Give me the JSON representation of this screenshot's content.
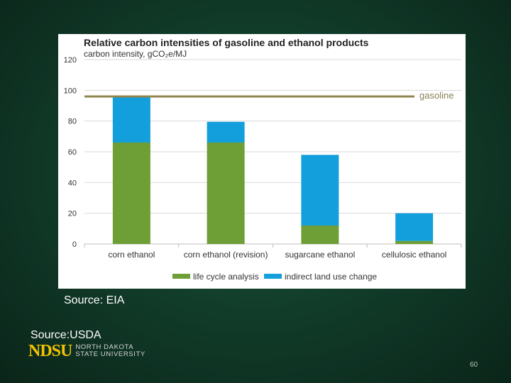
{
  "chart_data": {
    "type": "bar",
    "stacked": true,
    "title": "Relative carbon intensities of gasoline and ethanol products",
    "ylabel": "carbon intensity, gCO₂e/MJ",
    "xlabel": "",
    "ylim": [
      0,
      120
    ],
    "yticks": [
      0,
      20,
      40,
      60,
      80,
      100,
      120
    ],
    "categories": [
      "corn ethanol",
      "corn ethanol (revision)",
      "sugarcane ethanol",
      "cellulosic ethanol"
    ],
    "series": [
      {
        "name": "life cycle analysis",
        "color": "#6e9e36",
        "values": [
          66,
          66,
          12,
          2
        ]
      },
      {
        "name": "indirect land use change",
        "color": "#139fdb",
        "values": [
          30,
          13.5,
          46,
          18
        ]
      }
    ],
    "reference_line": {
      "label": "gasoline",
      "value": 96,
      "color": "#8f8650"
    },
    "grid": true,
    "legend_position": "bottom"
  },
  "sources": {
    "eia": "Source: EIA",
    "usda": "Source:USDA"
  },
  "logo": {
    "mark": "NDSU",
    "line1": "NORTH DAKOTA",
    "line2": "STATE UNIVERSITY"
  },
  "page_number": "60"
}
